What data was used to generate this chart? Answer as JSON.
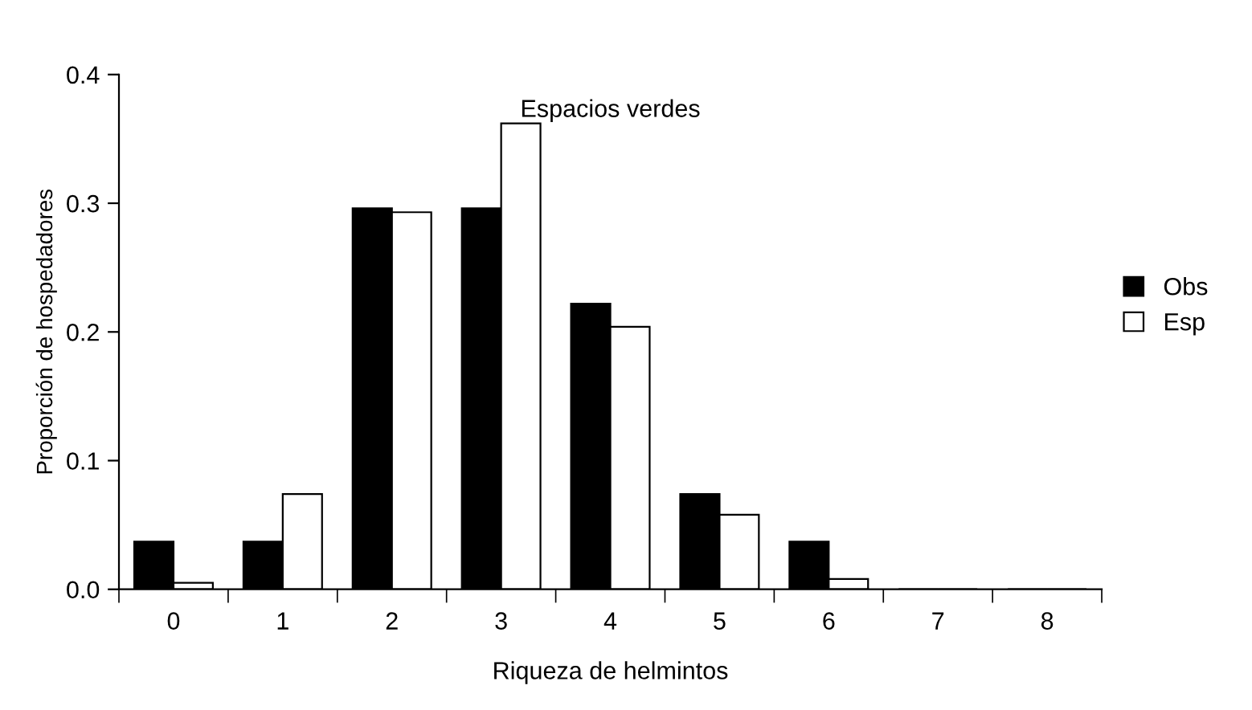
{
  "chart_data": {
    "type": "bar",
    "title": "Espacios verdes",
    "xlabel": "Riqueza de helmintos",
    "ylabel": "Proporción de hospedadores",
    "categories": [
      "0",
      "1",
      "2",
      "3",
      "4",
      "5",
      "6",
      "7",
      "8"
    ],
    "series": [
      {
        "name": "Obs",
        "color": "#000000",
        "values": [
          0.037,
          0.037,
          0.296,
          0.296,
          0.222,
          0.074,
          0.037,
          0,
          0
        ]
      },
      {
        "name": "Esp",
        "color": "#ffffff",
        "values": [
          0.005,
          0.074,
          0.293,
          0.362,
          0.204,
          0.058,
          0.008,
          0,
          0
        ]
      }
    ],
    "ylim": [
      0,
      0.4
    ],
    "yticks": [
      {
        "value": 0,
        "label": "0.0"
      },
      {
        "value": 0.1,
        "label": "0.1"
      },
      {
        "value": 0.2,
        "label": "0.2"
      },
      {
        "value": 0.3,
        "label": "0.3"
      },
      {
        "value": 0.4,
        "label": "0.4"
      }
    ],
    "grid": false,
    "legend": "right"
  }
}
